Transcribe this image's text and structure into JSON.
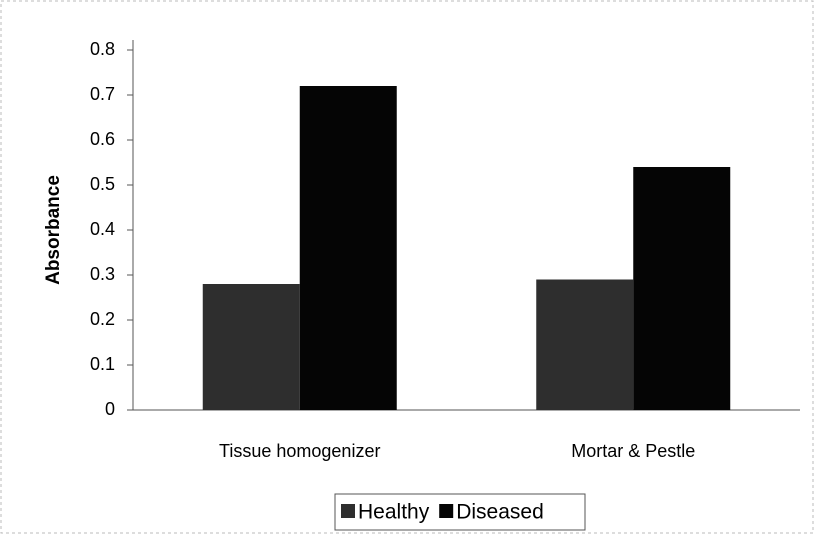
{
  "chart_data": {
    "type": "bar",
    "ylabel": "Absorbance",
    "categories": [
      "Tissue homogenizer",
      "Mortar & Pestle"
    ],
    "series": [
      {
        "name": "Healthy",
        "color": "#2e2e2e",
        "values": [
          0.28,
          0.29
        ]
      },
      {
        "name": "Diseased",
        "color": "#050505",
        "values": [
          0.72,
          0.54
        ]
      }
    ],
    "ylim": [
      0,
      0.8
    ],
    "yticks": [
      0,
      0.1,
      0.2,
      0.3,
      0.4,
      0.5,
      0.6,
      0.7,
      0.8
    ],
    "grid": false
  }
}
